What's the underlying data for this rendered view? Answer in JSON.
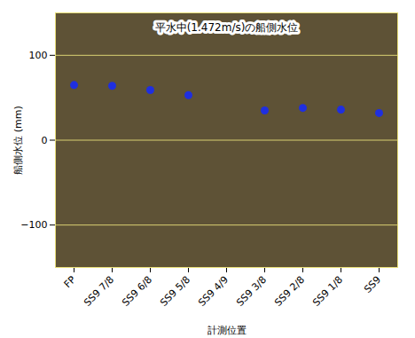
{
  "chart_data": {
    "type": "scatter",
    "title": "平水中(1.472m/s)の船側水位",
    "x_label": "計測位置",
    "y_label": "船側水位 (mm)",
    "categories": [
      "FP",
      "SS9 7/8",
      "SS9 6/8",
      "SS9 5/8",
      "SS9 4/9",
      "SS9 3/8",
      "SS9 2/8",
      "SS9 1/8",
      "SS9"
    ],
    "values": [
      65,
      64,
      59,
      53,
      null,
      35,
      38,
      36,
      32
    ],
    "color": "#1f2fe0",
    "marker": "circle",
    "ylim": [
      -150,
      150
    ],
    "yticks": [
      -100,
      0,
      100
    ],
    "grid": true
  }
}
